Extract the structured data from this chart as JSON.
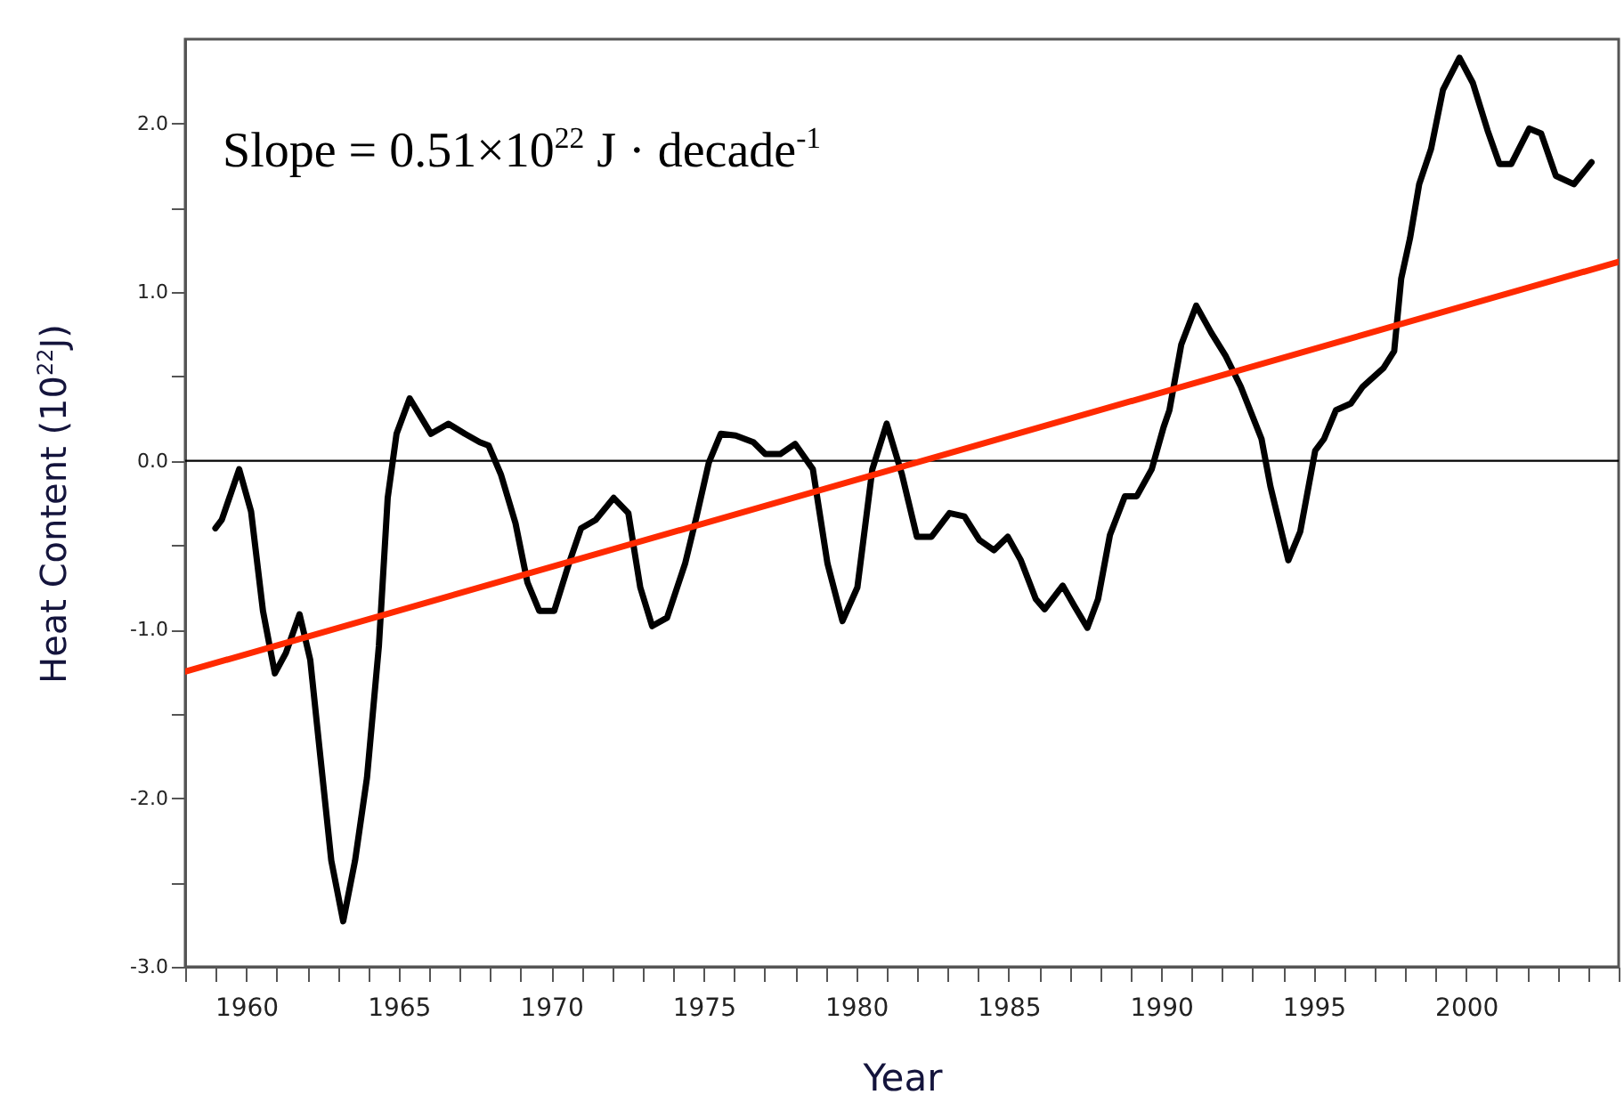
{
  "chart_data": {
    "type": "line",
    "xlabel": "Year",
    "ylabel": "Heat Content (10$^{22}$J)",
    "annotations": [
      "Slope = 0.51×10$^{22}$ J · decade$^{-1}$"
    ],
    "xlim": [
      1958,
      2005
    ],
    "ylim": [
      -3,
      2.5
    ],
    "xticks": [
      {
        "value": 1958,
        "label": null
      },
      {
        "value": 1959,
        "label": null
      },
      1960,
      {
        "value": 1961,
        "label": null
      },
      {
        "value": 1962,
        "label": null
      },
      {
        "value": 1963,
        "label": null
      },
      {
        "value": 1964,
        "label": null
      },
      1965,
      {
        "value": 1966,
        "label": null
      },
      {
        "value": 1967,
        "label": null
      },
      {
        "value": 1968,
        "label": null
      },
      {
        "value": 1969,
        "label": null
      },
      1970,
      {
        "value": 1971,
        "label": null
      },
      {
        "value": 1972,
        "label": null
      },
      {
        "value": 1973,
        "label": null
      },
      {
        "value": 1974,
        "label": null
      },
      1975,
      {
        "value": 1976,
        "label": null
      },
      {
        "value": 1977,
        "label": null
      },
      {
        "value": 1978,
        "label": null
      },
      {
        "value": 1979,
        "label": null
      },
      1980,
      {
        "value": 1981,
        "label": null
      },
      {
        "value": 1982,
        "label": null
      },
      {
        "value": 1983,
        "label": null
      },
      {
        "value": 1984,
        "label": null
      },
      1985,
      {
        "value": 1986,
        "label": null
      },
      {
        "value": 1987,
        "label": null
      },
      {
        "value": 1988,
        "label": null
      },
      {
        "value": 1989,
        "label": null
      },
      1990,
      {
        "value": 1991,
        "label": null
      },
      {
        "value": 1992,
        "label": null
      },
      {
        "value": 1993,
        "label": null
      },
      {
        "value": 1994,
        "label": null
      },
      1995,
      {
        "value": 1996,
        "label": null
      },
      {
        "value": 1997,
        "label": null
      },
      {
        "value": 1998,
        "label": null
      },
      {
        "value": 1999,
        "label": null
      },
      2000,
      {
        "value": 2001,
        "label": null
      },
      {
        "value": 2002,
        "label": null
      },
      {
        "value": 2003,
        "label": null
      },
      {
        "value": 2004,
        "label": null
      },
      {
        "value": 2005,
        "label": null
      }
    ],
    "yticks": [
      {
        "value": -3,
        "label": "-3.0"
      },
      {
        "value": -2.5,
        "label": null
      },
      {
        "value": -2,
        "label": "-2.0"
      },
      {
        "value": -1.5,
        "label": null
      },
      {
        "value": -1,
        "label": "-1.0"
      },
      {
        "value": -0.5,
        "label": null
      },
      {
        "value": 0,
        "label": "0.0"
      },
      {
        "value": 0.5,
        "label": null
      },
      {
        "value": 1,
        "label": "1.0"
      },
      {
        "value": 1.5,
        "label": null
      },
      {
        "value": 2,
        "label": "2.0"
      }
    ],
    "grid": false,
    "legend": false,
    "ref_lines": [
      {
        "axis": "y",
        "value": 0,
        "color": "#000000"
      }
    ],
    "series": [
      {
        "color": "#000000",
        "x": [
          1958.99,
          1959.2,
          1959.77,
          1960.16,
          1960.55,
          1960.94,
          1961.3,
          1961.75,
          1962.1,
          1962.4,
          1962.79,
          1963.18,
          1963.57,
          1963.96,
          1964.35,
          1964.64,
          1964.93,
          1965.36,
          1966.06,
          1966.63,
          1967.17,
          1967.66,
          1967.95,
          1968.35,
          1968.83,
          1969.22,
          1969.61,
          1970.1,
          1970.58,
          1970.98,
          1971.46,
          1972.05,
          1972.53,
          1972.92,
          1973.31,
          1973.8,
          1974.39,
          1974.78,
          1975.17,
          1975.56,
          1976.05,
          1976.63,
          1977.02,
          1977.51,
          1978,
          1978.58,
          1979.06,
          1979.55,
          1980.04,
          1980.53,
          1981,
          1981.5,
          1981.99,
          1982.47,
          1983.06,
          1983.55,
          1984.04,
          1984.52,
          1984.97,
          1985.4,
          1985.89,
          1986.18,
          1986.77,
          1987.15,
          1987.58,
          1987.93,
          1988.32,
          1988.81,
          1989.2,
          1989.69,
          1990.08,
          1990.27,
          1990.66,
          1991.15,
          1991.64,
          1992.12,
          1992.61,
          1993.29,
          1993.58,
          1994.17,
          1994.56,
          1995.05,
          1995.34,
          1995.73,
          1996.22,
          1996.61,
          1997.29,
          1997.64,
          1997.87,
          1998.16,
          1998.46,
          1998.85,
          1999.24,
          1999.78,
          2000.22,
          2000.7,
          2001.09,
          2001.48,
          2002.07,
          2002.46,
          2002.94,
          2003.53,
          2004.11
        ],
        "values": [
          -0.4,
          -0.35,
          -0.05,
          -0.3,
          -0.89,
          -1.26,
          -1.14,
          -0.91,
          -1.18,
          -1.7,
          -2.37,
          -2.73,
          -2.37,
          -1.88,
          -1.1,
          -0.22,
          0.16,
          0.37,
          0.16,
          0.22,
          0.16,
          0.11,
          0.09,
          -0.08,
          -0.37,
          -0.72,
          -0.89,
          -0.89,
          -0.61,
          -0.4,
          -0.35,
          -0.22,
          -0.31,
          -0.75,
          -0.98,
          -0.93,
          -0.61,
          -0.32,
          -0.01,
          0.16,
          0.15,
          0.11,
          0.04,
          0.04,
          0.1,
          -0.05,
          -0.61,
          -0.95,
          -0.75,
          -0.05,
          0.22,
          -0.08,
          -0.45,
          -0.45,
          -0.31,
          -0.33,
          -0.47,
          -0.53,
          -0.45,
          -0.59,
          -0.82,
          -0.88,
          -0.74,
          -0.86,
          -0.99,
          -0.82,
          -0.44,
          -0.21,
          -0.21,
          -0.05,
          0.2,
          0.3,
          0.69,
          0.92,
          0.76,
          0.62,
          0.44,
          0.13,
          -0.15,
          -0.59,
          -0.42,
          0.06,
          0.13,
          0.3,
          0.34,
          0.44,
          0.55,
          0.65,
          1.08,
          1.32,
          1.64,
          1.85,
          2.2,
          2.39,
          2.24,
          1.96,
          1.76,
          1.76,
          1.97,
          1.94,
          1.69,
          1.64,
          1.77
        ]
      },
      {
        "type": "line",
        "color": "#ff2a00",
        "x": [
          1958,
          2005
        ],
        "values": [
          -1.25,
          1.18
        ]
      }
    ]
  }
}
